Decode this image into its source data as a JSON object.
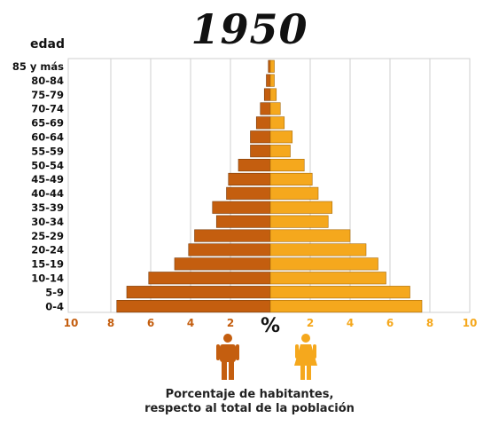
{
  "chart_data": {
    "type": "bar",
    "title": "1950",
    "ylabel": "edad",
    "center_label": "%",
    "categories": [
      "85 y más",
      "80-84",
      "75-79",
      "70-74",
      "65-69",
      "60-64",
      "55-59",
      "50-54",
      "45-49",
      "40-44",
      "35-39",
      "30-34",
      "25-29",
      "20-24",
      "15-19",
      "10-14",
      "5-9",
      "0-4"
    ],
    "series": [
      {
        "values": [
          0.1,
          0.2,
          0.3,
          0.5,
          0.7,
          1.0,
          1.0,
          1.6,
          2.1,
          2.2,
          2.9,
          2.7,
          3.8,
          4.1,
          4.8,
          6.1,
          7.2,
          7.7
        ],
        "color": "#c45e0f"
      },
      {
        "values": [
          0.2,
          0.2,
          0.3,
          0.5,
          0.7,
          1.1,
          1.0,
          1.7,
          2.1,
          2.4,
          3.1,
          2.9,
          4.0,
          4.8,
          5.4,
          5.8,
          7.0,
          7.6
        ],
        "color": "#f5a81d"
      }
    ],
    "x_ticks_left": [
      "10",
      "8",
      "6",
      "4",
      "2"
    ],
    "x_ticks_right": [
      "2",
      "4",
      "6",
      "8",
      "10"
    ],
    "xlim": [
      0,
      10
    ],
    "grid": true,
    "caption_line1": "Porcentaje de habitantes,",
    "caption_line2": "respecto al total de la población"
  },
  "icons": [
    "male-icon",
    "female-icon"
  ]
}
